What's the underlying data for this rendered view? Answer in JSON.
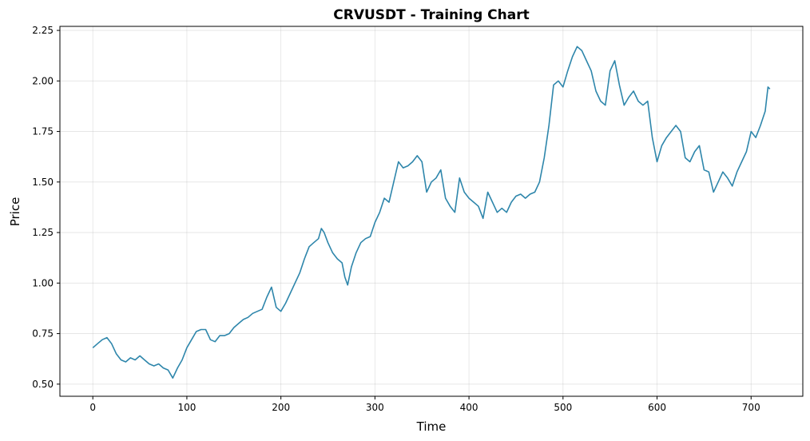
{
  "chart_data": {
    "type": "line",
    "title": "CRVUSDT - Training Chart",
    "xlabel": "Time",
    "ylabel": "Price",
    "xlim": [
      -35,
      755
    ],
    "ylim": [
      0.44,
      2.27
    ],
    "xticks": [
      0,
      100,
      200,
      300,
      400,
      500,
      600,
      700
    ],
    "xtick_labels": [
      "0",
      "100",
      "200",
      "300",
      "400",
      "500",
      "600",
      "700"
    ],
    "yticks": [
      0.5,
      0.75,
      1.0,
      1.25,
      1.5,
      1.75,
      2.0,
      2.25
    ],
    "ytick_labels": [
      "0.50",
      "0.75",
      "1.00",
      "1.25",
      "1.50",
      "1.75",
      "2.00",
      "2.25"
    ],
    "grid": true,
    "series": [
      {
        "color": "#2e86ab",
        "x": [
          0,
          5,
          10,
          15,
          20,
          25,
          30,
          35,
          40,
          45,
          50,
          55,
          60,
          65,
          70,
          75,
          80,
          85,
          90,
          95,
          100,
          105,
          110,
          115,
          120,
          125,
          130,
          135,
          140,
          145,
          150,
          155,
          160,
          165,
          170,
          175,
          180,
          185,
          190,
          195,
          200,
          205,
          210,
          215,
          220,
          225,
          230,
          235,
          240,
          243,
          246,
          250,
          255,
          260,
          265,
          268,
          271,
          275,
          280,
          285,
          290,
          295,
          300,
          305,
          310,
          315,
          320,
          325,
          330,
          335,
          340,
          345,
          350,
          355,
          360,
          365,
          370,
          375,
          380,
          385,
          390,
          395,
          400,
          405,
          410,
          415,
          420,
          425,
          430,
          435,
          440,
          445,
          450,
          455,
          460,
          465,
          470,
          475,
          480,
          485,
          490,
          495,
          500,
          505,
          510,
          515,
          520,
          525,
          530,
          535,
          540,
          545,
          550,
          555,
          560,
          565,
          570,
          575,
          580,
          585,
          590,
          595,
          600,
          605,
          610,
          615,
          620,
          625,
          630,
          635,
          640,
          645,
          650,
          655,
          660,
          665,
          670,
          675,
          680,
          685,
          690,
          695,
          700,
          705,
          710,
          715,
          718,
          720
        ],
        "y": [
          0.68,
          0.7,
          0.72,
          0.73,
          0.7,
          0.65,
          0.62,
          0.61,
          0.63,
          0.62,
          0.64,
          0.62,
          0.6,
          0.59,
          0.6,
          0.58,
          0.57,
          0.53,
          0.58,
          0.62,
          0.68,
          0.72,
          0.76,
          0.77,
          0.77,
          0.72,
          0.71,
          0.74,
          0.74,
          0.75,
          0.78,
          0.8,
          0.82,
          0.83,
          0.85,
          0.86,
          0.87,
          0.93,
          0.98,
          0.88,
          0.86,
          0.9,
          0.95,
          1.0,
          1.05,
          1.12,
          1.18,
          1.2,
          1.22,
          1.27,
          1.25,
          1.2,
          1.15,
          1.12,
          1.1,
          1.03,
          0.99,
          1.08,
          1.15,
          1.2,
          1.22,
          1.23,
          1.3,
          1.35,
          1.42,
          1.4,
          1.5,
          1.6,
          1.57,
          1.58,
          1.6,
          1.63,
          1.6,
          1.45,
          1.5,
          1.52,
          1.56,
          1.42,
          1.38,
          1.35,
          1.52,
          1.45,
          1.42,
          1.4,
          1.38,
          1.32,
          1.45,
          1.4,
          1.35,
          1.37,
          1.35,
          1.4,
          1.43,
          1.44,
          1.42,
          1.44,
          1.45,
          1.5,
          1.62,
          1.78,
          1.98,
          2.0,
          1.97,
          2.05,
          2.12,
          2.17,
          2.15,
          2.1,
          2.05,
          1.95,
          1.9,
          1.88,
          2.05,
          2.1,
          1.98,
          1.88,
          1.92,
          1.95,
          1.9,
          1.88,
          1.9,
          1.72,
          1.6,
          1.68,
          1.72,
          1.75,
          1.78,
          1.75,
          1.62,
          1.6,
          1.65,
          1.68,
          1.56,
          1.55,
          1.45,
          1.5,
          1.55,
          1.52,
          1.48,
          1.55,
          1.6,
          1.65,
          1.75,
          1.72,
          1.78,
          1.85,
          1.97,
          1.96
        ]
      }
    ]
  }
}
